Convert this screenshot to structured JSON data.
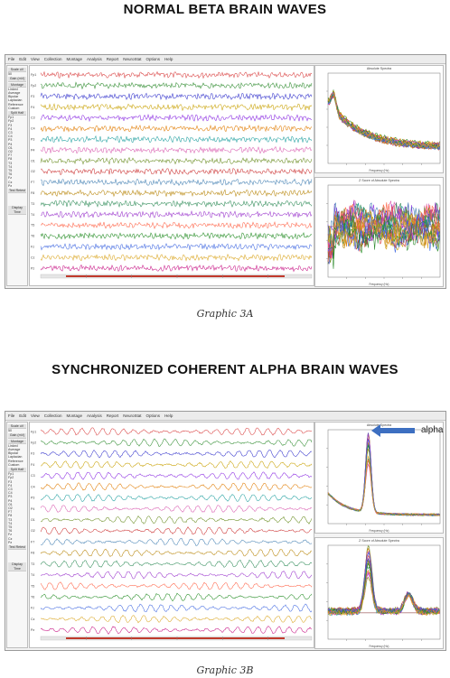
{
  "panel_a": {
    "heading": "NORMAL BETA BRAIN WAVES",
    "caption": "Graphic 3A",
    "spectrum_top_title": "Absolute Spectra",
    "spectrum_bottom_title": "Z Score of Absolute Spectra",
    "spectrum_xlabel": "Frequency (Hz)"
  },
  "panel_b": {
    "heading": "SYNCHRONIZED COHERENT ALPHA BRAIN WAVES",
    "caption": "Graphic 3B",
    "annotation": "alpha",
    "spectrum_top_title": "Absolute Spectra",
    "spectrum_bottom_title": "Z Score of Absolute Spectra",
    "spectrum_xlabel": "Frequency (Hz)"
  },
  "menu": [
    "File",
    "Edit",
    "View",
    "Collection",
    "Montage",
    "Analysis",
    "Report",
    "NeuroStat",
    "Options",
    "Help"
  ],
  "sidepanel": {
    "scale_label": "Scale uV",
    "scale_value": "50",
    "gain_label": "Gain (mV)",
    "montage_label": "Montage",
    "montage_items": [
      "Linked",
      "Average",
      "Bipolar",
      "Laplacian",
      "Reference",
      "Custom"
    ],
    "power_label": "Split Half",
    "channels": [
      "Fp1",
      "Fp2",
      "F3",
      "F4",
      "C3",
      "C4",
      "P3",
      "P4",
      "O1",
      "O2",
      "F7",
      "F8",
      "T3",
      "T4",
      "T5",
      "T6",
      "Fz",
      "Cz",
      "Pz"
    ],
    "test_label": "Test Retest",
    "display_label": "Display Time"
  },
  "colors": {
    "trace_colors": [
      "#d94040",
      "#2e8b2e",
      "#3333cc",
      "#c8a000",
      "#8a2be2",
      "#e07b00",
      "#1f9f9f",
      "#d95cb0",
      "#6b8e23",
      "#cc3333",
      "#4682b4",
      "#b8860b",
      "#2e8b57",
      "#9932cc",
      "#ff6347",
      "#228b22",
      "#4169e1",
      "#daa520",
      "#c71585"
    ],
    "arrow": "#3d6fc1"
  }
}
